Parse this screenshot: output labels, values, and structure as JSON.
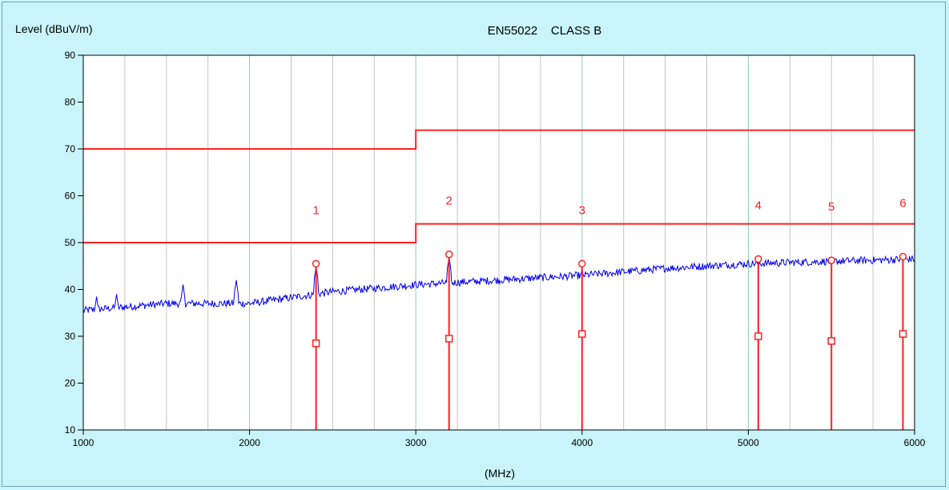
{
  "chart_data": {
    "type": "line",
    "title": "EN55022    CLASS B",
    "ylabel": "Level (dBuV/m)",
    "xlabel": "(MHz)",
    "xlim": [
      1000,
      6000
    ],
    "ylim": [
      10,
      90
    ],
    "x_ticks": [
      1000,
      2000,
      3000,
      4000,
      5000,
      6000
    ],
    "y_ticks": [
      10,
      20,
      30,
      40,
      50,
      60,
      70,
      80,
      90
    ],
    "grid": true,
    "colors": {
      "plot_bg": "#ffffff",
      "page_bg": "#c8f4fa",
      "major_grid": "#8fc9cf",
      "minor_grid": "#c4c4c4",
      "limit": "#ff2020",
      "trace": "#0000ee"
    },
    "limit_lines": [
      {
        "points": [
          [
            1000,
            70
          ],
          [
            3000,
            70
          ],
          [
            3000,
            74
          ],
          [
            6000,
            74
          ]
        ]
      },
      {
        "points": [
          [
            1000,
            50
          ],
          [
            3000,
            50
          ],
          [
            3000,
            54
          ],
          [
            6000,
            54
          ]
        ]
      }
    ],
    "trace": {
      "baseline": [
        [
          1000,
          35.5
        ],
        [
          1500,
          37
        ],
        [
          2000,
          37
        ],
        [
          2500,
          39.5
        ],
        [
          3000,
          41
        ],
        [
          3500,
          42
        ],
        [
          4000,
          43
        ],
        [
          4500,
          44.5
        ],
        [
          5000,
          45.5
        ],
        [
          5500,
          46
        ],
        [
          6000,
          46.5
        ]
      ],
      "spikes": [
        [
          1080,
          38.5
        ],
        [
          1200,
          39
        ],
        [
          1600,
          41
        ],
        [
          1920,
          42
        ],
        [
          2400,
          45
        ],
        [
          3200,
          47
        ],
        [
          4000,
          44.5
        ],
        [
          5050,
          46
        ],
        [
          5500,
          46
        ],
        [
          5920,
          47
        ]
      ]
    },
    "markers": [
      {
        "label": "1",
        "freq": 2400,
        "peak": 45.5,
        "avg": 28.5
      },
      {
        "label": "2",
        "freq": 3200,
        "peak": 47.5,
        "avg": 29.5
      },
      {
        "label": "3",
        "freq": 4000,
        "peak": 45.5,
        "avg": 30.5
      },
      {
        "label": "4",
        "freq": 5060,
        "peak": 46.5,
        "avg": 30
      },
      {
        "label": "5",
        "freq": 5500,
        "peak": 46.2,
        "avg": 29
      },
      {
        "label": "6",
        "freq": 5930,
        "peak": 47,
        "avg": 30.5
      }
    ]
  }
}
